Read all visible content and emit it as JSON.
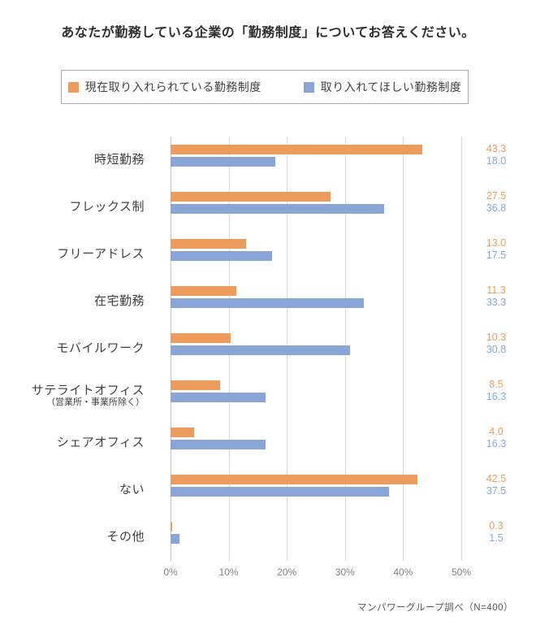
{
  "title": "あなたが勤務している企業の「勤務制度」についてお答えください。",
  "legend": {
    "series1_label": "現在取り入れられている勤務制度",
    "series2_label": "取り入れてほしい勤務制度"
  },
  "footer": "マンパワーグループ調べ（N=400）",
  "colors": {
    "current": "#EC9C5D",
    "desired": "#88A5D6",
    "gridline": "#D9D9D9",
    "axis_line": "#C6C6C6",
    "tick_text": "#808080",
    "label_text": "#404040"
  },
  "chart_data": {
    "type": "bar",
    "orientation": "horizontal",
    "title": "あなたが勤務している企業の「勤務制度」についてお答えください。",
    "categories": [
      {
        "label": "時短勤務",
        "sublabel": ""
      },
      {
        "label": "フレックス制",
        "sublabel": ""
      },
      {
        "label": "フリーアドレス",
        "sublabel": ""
      },
      {
        "label": "在宅勤務",
        "sublabel": ""
      },
      {
        "label": "モバイルワーク",
        "sublabel": ""
      },
      {
        "label": "サテライトオフィス",
        "sublabel": "（営業所・事業所除く）"
      },
      {
        "label": "シェアオフィス",
        "sublabel": ""
      },
      {
        "label": "ない",
        "sublabel": ""
      },
      {
        "label": "その他",
        "sublabel": ""
      }
    ],
    "series": [
      {
        "name": "現在取り入れられている勤務制度",
        "color": "#EC9C5D",
        "values": [
          43.3,
          27.5,
          13.0,
          11.3,
          10.3,
          8.5,
          4.0,
          42.5,
          0.3
        ]
      },
      {
        "name": "取り入れてほしい勤務制度",
        "color": "#88A5D6",
        "values": [
          18.0,
          36.8,
          17.5,
          33.3,
          30.8,
          16.3,
          16.3,
          37.5,
          1.5
        ]
      }
    ],
    "x_ticks": [
      "0%",
      "10%",
      "20%",
      "30%",
      "40%",
      "50%"
    ],
    "xlim": [
      0,
      50
    ],
    "grid": true,
    "legend_position": "top",
    "value_labels": true,
    "source_note": "マンパワーグループ調べ（N=400）"
  }
}
